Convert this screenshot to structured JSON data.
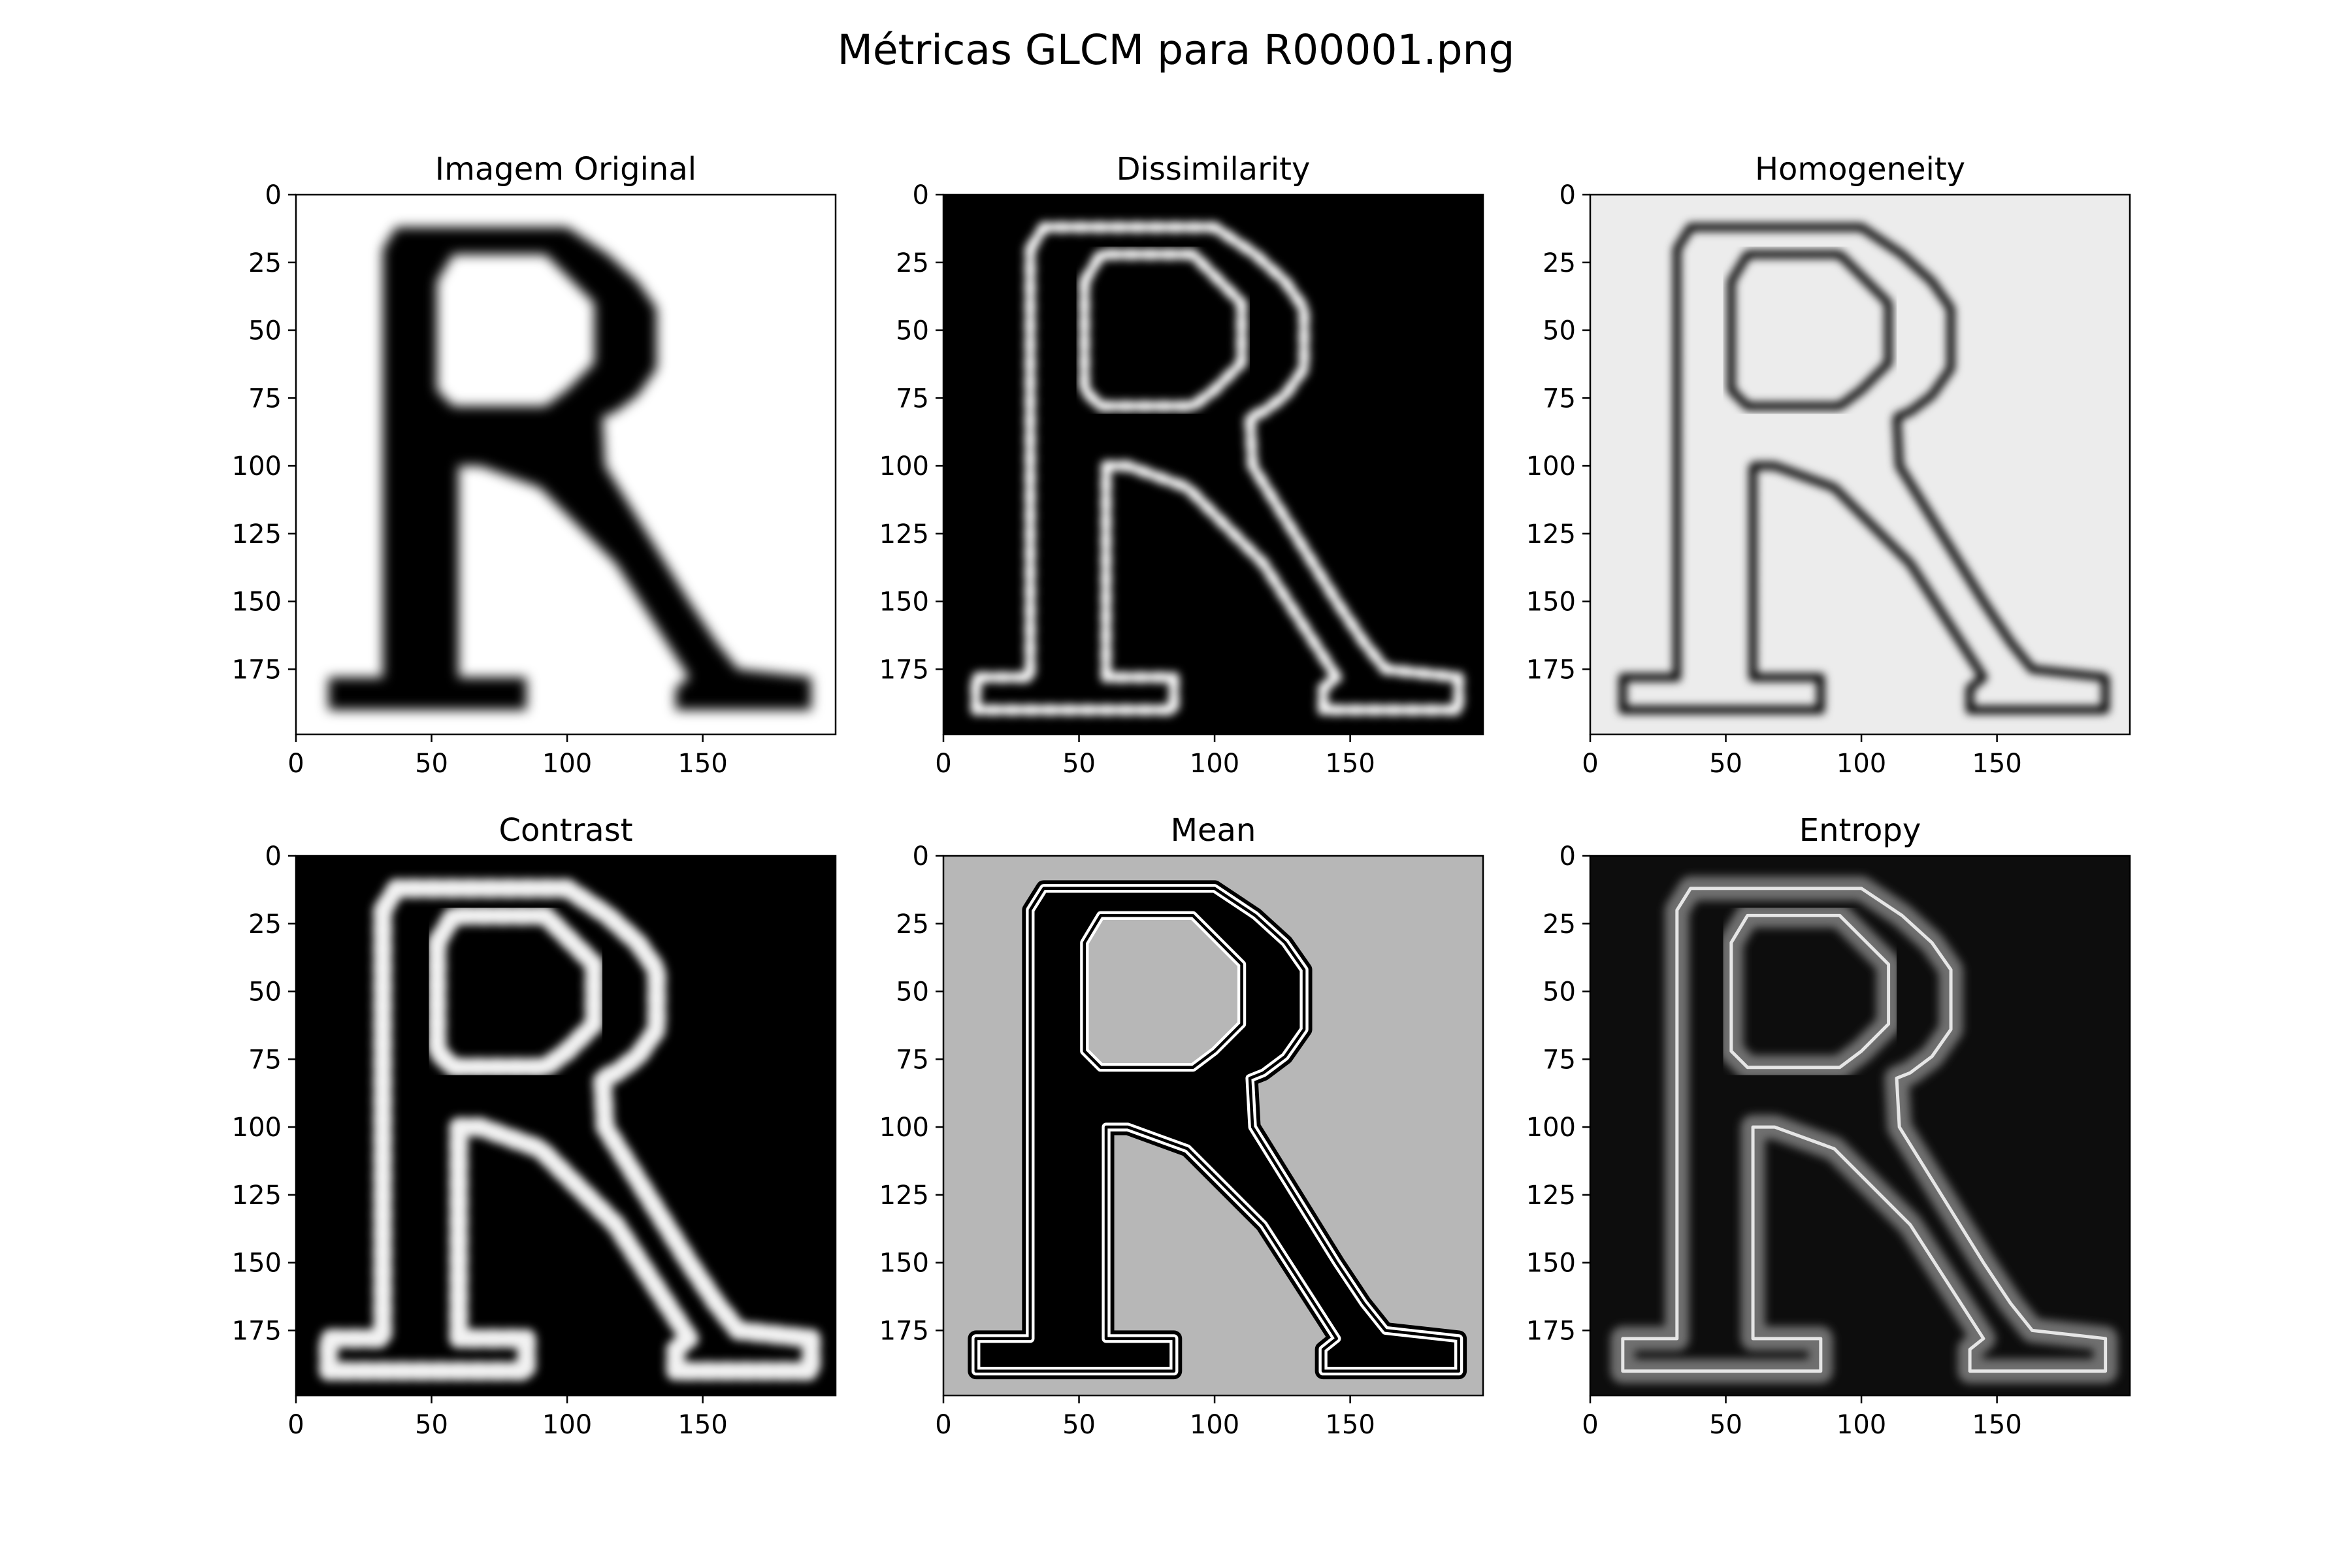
{
  "figure": {
    "title": "Métricas GLCM para R00001.png"
  },
  "chart_data": [
    {
      "type": "heatmap",
      "title": "Imagem Original",
      "background": "#ffffff",
      "stroke": "#000000",
      "variant": "original",
      "xlim": [
        0,
        199
      ],
      "ylim": [
        199,
        0
      ],
      "xticks": [
        0,
        50,
        100,
        150
      ],
      "yticks": [
        0,
        25,
        50,
        75,
        100,
        125,
        150,
        175
      ]
    },
    {
      "type": "heatmap",
      "title": "Dissimilarity",
      "background": "#000000",
      "stroke": "#ffffff",
      "variant": "edges",
      "xlim": [
        0,
        199
      ],
      "ylim": [
        199,
        0
      ],
      "xticks": [
        0,
        50,
        100,
        150
      ],
      "yticks": [
        0,
        25,
        50,
        75,
        100,
        125,
        150,
        175
      ]
    },
    {
      "type": "heatmap",
      "title": "Homogeneity",
      "background": "#ececec",
      "stroke": "#000000",
      "variant": "edges-dashed",
      "xlim": [
        0,
        199
      ],
      "ylim": [
        199,
        0
      ],
      "xticks": [
        0,
        50,
        100,
        150
      ],
      "yticks": [
        0,
        25,
        50,
        75,
        100,
        125,
        150,
        175
      ]
    },
    {
      "type": "heatmap",
      "title": "Contrast",
      "background": "#000000",
      "stroke": "#f2f2f2",
      "variant": "edges-thick",
      "xlim": [
        0,
        199
      ],
      "ylim": [
        199,
        0
      ],
      "xticks": [
        0,
        50,
        100,
        150
      ],
      "yticks": [
        0,
        25,
        50,
        75,
        100,
        125,
        150,
        175
      ]
    },
    {
      "type": "heatmap",
      "title": "Mean",
      "background": "#b7b7b7",
      "stroke": "#000000",
      "variant": "outline-double",
      "xlim": [
        0,
        199
      ],
      "ylim": [
        199,
        0
      ],
      "xticks": [
        0,
        50,
        100,
        150
      ],
      "yticks": [
        0,
        25,
        50,
        75,
        100,
        125,
        150,
        175
      ]
    },
    {
      "type": "heatmap",
      "title": "Entropy",
      "background": "#0d0d0d",
      "stroke": "#6f6f6f",
      "variant": "outline-band",
      "xlim": [
        0,
        199
      ],
      "ylim": [
        199,
        0
      ],
      "xticks": [
        0,
        50,
        100,
        150
      ],
      "yticks": [
        0,
        25,
        50,
        75,
        100,
        125,
        150,
        175
      ]
    }
  ]
}
